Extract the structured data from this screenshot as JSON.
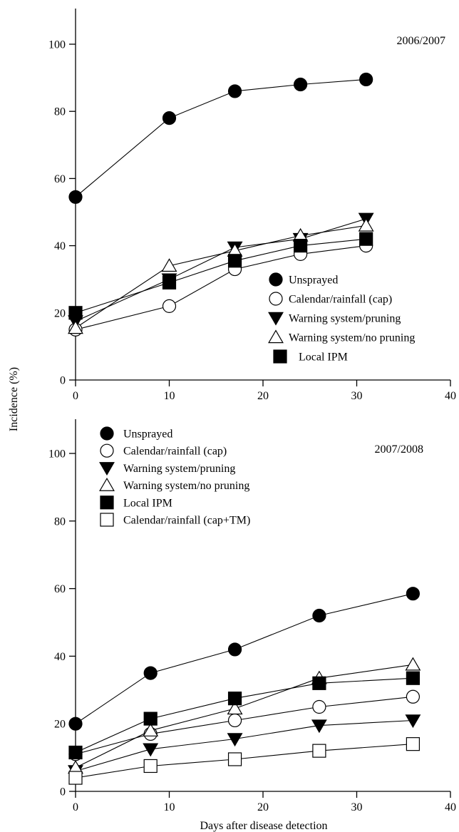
{
  "chart_data": [
    {
      "type": "line",
      "label": "2006/2007",
      "xlim": [
        0,
        40
      ],
      "ylim": [
        0,
        110
      ],
      "xticks": [
        0,
        10,
        20,
        30,
        40
      ],
      "yticks": [
        0,
        20,
        40,
        60,
        80,
        100
      ],
      "ylabel": "Incidence (%)",
      "legend_position": "lower-right",
      "series": [
        {
          "name": "Unsprayed",
          "marker": "filled-circle",
          "x": [
            0,
            10,
            17,
            24,
            31
          ],
          "y": [
            54.5,
            78,
            86,
            88,
            89.5
          ]
        },
        {
          "name": "Calendar/rainfall (cap)",
          "marker": "open-circle",
          "x": [
            0,
            10,
            17,
            24,
            31
          ],
          "y": [
            15,
            22,
            33,
            37.5,
            40
          ]
        },
        {
          "name": "Warning system/pruning",
          "marker": "filled-triangle-down",
          "x": [
            0,
            10,
            17,
            24,
            31
          ],
          "y": [
            17.5,
            30,
            39.5,
            42,
            48
          ]
        },
        {
          "name": "Warning system/no pruning",
          "marker": "open-triangle-up",
          "x": [
            0,
            10,
            17,
            24,
            31
          ],
          "y": [
            15.5,
            34,
            38.5,
            43,
            46
          ]
        },
        {
          "name": "Local IPM",
          "marker": "filled-square",
          "x": [
            0,
            10,
            17,
            24,
            31
          ],
          "y": [
            20,
            29,
            35.5,
            40,
            42
          ]
        }
      ]
    },
    {
      "type": "line",
      "label": "2007/2008",
      "xlim": [
        0,
        40
      ],
      "ylim": [
        0,
        110
      ],
      "xticks": [
        0,
        10,
        20,
        30,
        40
      ],
      "yticks": [
        0,
        20,
        40,
        60,
        80,
        100
      ],
      "xlabel": "Days after disease detection",
      "legend_position": "top-left",
      "series": [
        {
          "name": "Unsprayed",
          "marker": "filled-circle",
          "x": [
            0,
            8,
            17,
            26,
            36
          ],
          "y": [
            20,
            35,
            42,
            52,
            58.5
          ]
        },
        {
          "name": "Calendar/rainfall (cap)",
          "marker": "open-circle",
          "x": [
            0,
            8,
            17,
            26,
            36
          ],
          "y": [
            11,
            17,
            21,
            25,
            28
          ]
        },
        {
          "name": "Warning system/pruning",
          "marker": "filled-triangle-down",
          "x": [
            0,
            8,
            17,
            26,
            36
          ],
          "y": [
            6,
            12.5,
            15.5,
            19.5,
            21
          ]
        },
        {
          "name": "Warning system/no pruning",
          "marker": "open-triangle-up",
          "x": [
            0,
            8,
            17,
            26,
            36
          ],
          "y": [
            7,
            18,
            24.5,
            33.5,
            37.5
          ]
        },
        {
          "name": "Local IPM",
          "marker": "filled-square",
          "x": [
            0,
            8,
            17,
            26,
            36
          ],
          "y": [
            11.5,
            21.5,
            27.5,
            32,
            33.5
          ]
        },
        {
          "name": "Calendar/rainfall (cap+TM)",
          "marker": "open-square",
          "x": [
            0,
            8,
            17,
            26,
            36
          ],
          "y": [
            4,
            7.5,
            9.5,
            12,
            14
          ]
        }
      ]
    }
  ]
}
